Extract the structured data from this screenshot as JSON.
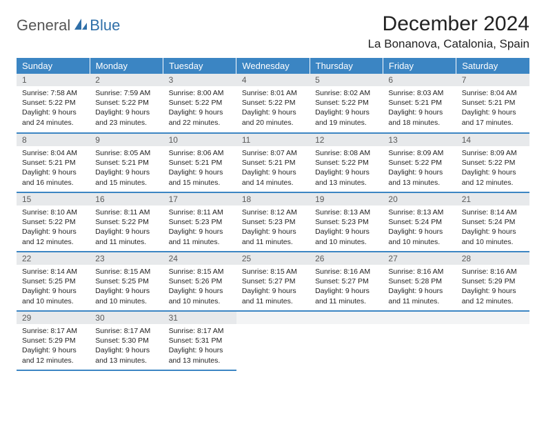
{
  "brand": {
    "part1": "General",
    "part2": "Blue"
  },
  "title": "December 2024",
  "location": "La Bonanova, Catalonia, Spain",
  "colors": {
    "header_bg": "#3b85c3",
    "header_text": "#ffffff",
    "daynum_bg": "#e7e9eb",
    "border": "#3b85c3",
    "brand_blue": "#2f6fa8",
    "brand_gray": "#555555"
  },
  "weekdays": [
    "Sunday",
    "Monday",
    "Tuesday",
    "Wednesday",
    "Thursday",
    "Friday",
    "Saturday"
  ],
  "days": [
    {
      "n": "1",
      "sr": "Sunrise: 7:58 AM",
      "ss": "Sunset: 5:22 PM",
      "d1": "Daylight: 9 hours",
      "d2": "and 24 minutes."
    },
    {
      "n": "2",
      "sr": "Sunrise: 7:59 AM",
      "ss": "Sunset: 5:22 PM",
      "d1": "Daylight: 9 hours",
      "d2": "and 23 minutes."
    },
    {
      "n": "3",
      "sr": "Sunrise: 8:00 AM",
      "ss": "Sunset: 5:22 PM",
      "d1": "Daylight: 9 hours",
      "d2": "and 22 minutes."
    },
    {
      "n": "4",
      "sr": "Sunrise: 8:01 AM",
      "ss": "Sunset: 5:22 PM",
      "d1": "Daylight: 9 hours",
      "d2": "and 20 minutes."
    },
    {
      "n": "5",
      "sr": "Sunrise: 8:02 AM",
      "ss": "Sunset: 5:22 PM",
      "d1": "Daylight: 9 hours",
      "d2": "and 19 minutes."
    },
    {
      "n": "6",
      "sr": "Sunrise: 8:03 AM",
      "ss": "Sunset: 5:21 PM",
      "d1": "Daylight: 9 hours",
      "d2": "and 18 minutes."
    },
    {
      "n": "7",
      "sr": "Sunrise: 8:04 AM",
      "ss": "Sunset: 5:21 PM",
      "d1": "Daylight: 9 hours",
      "d2": "and 17 minutes."
    },
    {
      "n": "8",
      "sr": "Sunrise: 8:04 AM",
      "ss": "Sunset: 5:21 PM",
      "d1": "Daylight: 9 hours",
      "d2": "and 16 minutes."
    },
    {
      "n": "9",
      "sr": "Sunrise: 8:05 AM",
      "ss": "Sunset: 5:21 PM",
      "d1": "Daylight: 9 hours",
      "d2": "and 15 minutes."
    },
    {
      "n": "10",
      "sr": "Sunrise: 8:06 AM",
      "ss": "Sunset: 5:21 PM",
      "d1": "Daylight: 9 hours",
      "d2": "and 15 minutes."
    },
    {
      "n": "11",
      "sr": "Sunrise: 8:07 AM",
      "ss": "Sunset: 5:21 PM",
      "d1": "Daylight: 9 hours",
      "d2": "and 14 minutes."
    },
    {
      "n": "12",
      "sr": "Sunrise: 8:08 AM",
      "ss": "Sunset: 5:22 PM",
      "d1": "Daylight: 9 hours",
      "d2": "and 13 minutes."
    },
    {
      "n": "13",
      "sr": "Sunrise: 8:09 AM",
      "ss": "Sunset: 5:22 PM",
      "d1": "Daylight: 9 hours",
      "d2": "and 13 minutes."
    },
    {
      "n": "14",
      "sr": "Sunrise: 8:09 AM",
      "ss": "Sunset: 5:22 PM",
      "d1": "Daylight: 9 hours",
      "d2": "and 12 minutes."
    },
    {
      "n": "15",
      "sr": "Sunrise: 8:10 AM",
      "ss": "Sunset: 5:22 PM",
      "d1": "Daylight: 9 hours",
      "d2": "and 12 minutes."
    },
    {
      "n": "16",
      "sr": "Sunrise: 8:11 AM",
      "ss": "Sunset: 5:22 PM",
      "d1": "Daylight: 9 hours",
      "d2": "and 11 minutes."
    },
    {
      "n": "17",
      "sr": "Sunrise: 8:11 AM",
      "ss": "Sunset: 5:23 PM",
      "d1": "Daylight: 9 hours",
      "d2": "and 11 minutes."
    },
    {
      "n": "18",
      "sr": "Sunrise: 8:12 AM",
      "ss": "Sunset: 5:23 PM",
      "d1": "Daylight: 9 hours",
      "d2": "and 11 minutes."
    },
    {
      "n": "19",
      "sr": "Sunrise: 8:13 AM",
      "ss": "Sunset: 5:23 PM",
      "d1": "Daylight: 9 hours",
      "d2": "and 10 minutes."
    },
    {
      "n": "20",
      "sr": "Sunrise: 8:13 AM",
      "ss": "Sunset: 5:24 PM",
      "d1": "Daylight: 9 hours",
      "d2": "and 10 minutes."
    },
    {
      "n": "21",
      "sr": "Sunrise: 8:14 AM",
      "ss": "Sunset: 5:24 PM",
      "d1": "Daylight: 9 hours",
      "d2": "and 10 minutes."
    },
    {
      "n": "22",
      "sr": "Sunrise: 8:14 AM",
      "ss": "Sunset: 5:25 PM",
      "d1": "Daylight: 9 hours",
      "d2": "and 10 minutes."
    },
    {
      "n": "23",
      "sr": "Sunrise: 8:15 AM",
      "ss": "Sunset: 5:25 PM",
      "d1": "Daylight: 9 hours",
      "d2": "and 10 minutes."
    },
    {
      "n": "24",
      "sr": "Sunrise: 8:15 AM",
      "ss": "Sunset: 5:26 PM",
      "d1": "Daylight: 9 hours",
      "d2": "and 10 minutes."
    },
    {
      "n": "25",
      "sr": "Sunrise: 8:15 AM",
      "ss": "Sunset: 5:27 PM",
      "d1": "Daylight: 9 hours",
      "d2": "and 11 minutes."
    },
    {
      "n": "26",
      "sr": "Sunrise: 8:16 AM",
      "ss": "Sunset: 5:27 PM",
      "d1": "Daylight: 9 hours",
      "d2": "and 11 minutes."
    },
    {
      "n": "27",
      "sr": "Sunrise: 8:16 AM",
      "ss": "Sunset: 5:28 PM",
      "d1": "Daylight: 9 hours",
      "d2": "and 11 minutes."
    },
    {
      "n": "28",
      "sr": "Sunrise: 8:16 AM",
      "ss": "Sunset: 5:29 PM",
      "d1": "Daylight: 9 hours",
      "d2": "and 12 minutes."
    },
    {
      "n": "29",
      "sr": "Sunrise: 8:17 AM",
      "ss": "Sunset: 5:29 PM",
      "d1": "Daylight: 9 hours",
      "d2": "and 12 minutes."
    },
    {
      "n": "30",
      "sr": "Sunrise: 8:17 AM",
      "ss": "Sunset: 5:30 PM",
      "d1": "Daylight: 9 hours",
      "d2": "and 13 minutes."
    },
    {
      "n": "31",
      "sr": "Sunrise: 8:17 AM",
      "ss": "Sunset: 5:31 PM",
      "d1": "Daylight: 9 hours",
      "d2": "and 13 minutes."
    }
  ]
}
